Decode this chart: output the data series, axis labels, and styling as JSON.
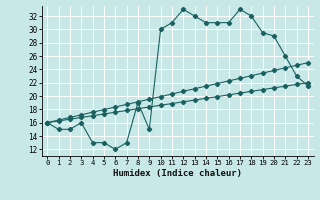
{
  "title": "",
  "xlabel": "Humidex (Indice chaleur)",
  "xlim": [
    -0.5,
    23.5
  ],
  "ylim": [
    11,
    33.5
  ],
  "yticks": [
    12,
    14,
    16,
    18,
    20,
    22,
    24,
    26,
    28,
    30,
    32
  ],
  "xticks": [
    0,
    1,
    2,
    3,
    4,
    5,
    6,
    7,
    8,
    9,
    10,
    11,
    12,
    13,
    14,
    15,
    16,
    17,
    18,
    19,
    20,
    21,
    22,
    23
  ],
  "background_color": "#c8e8e8",
  "line_color": "#1a6060",
  "grid_color": "#ffffff",
  "line1_x": [
    0,
    1,
    2,
    3,
    4,
    5,
    6,
    7,
    8,
    9,
    10,
    11,
    12,
    13,
    14,
    15,
    16,
    17,
    18,
    19,
    20,
    21,
    22,
    23
  ],
  "line1_y": [
    16,
    15,
    15,
    16,
    13,
    13,
    12,
    13,
    19,
    15,
    30,
    31,
    33,
    32,
    31,
    31,
    31,
    33,
    32,
    29.5,
    29,
    26,
    23,
    21.5
  ],
  "line2_x": [
    0,
    1,
    2,
    3,
    4,
    5,
    6,
    7,
    8,
    9,
    10,
    11,
    12,
    13,
    14,
    15,
    16,
    17,
    18,
    19,
    20,
    21,
    22,
    23
  ],
  "line2_y": [
    16,
    16.39,
    16.78,
    17.17,
    17.57,
    17.96,
    18.35,
    18.74,
    19.13,
    19.52,
    19.91,
    20.3,
    20.7,
    21.09,
    21.48,
    21.87,
    22.26,
    22.65,
    23.04,
    23.43,
    23.83,
    24.22,
    24.61,
    25
  ],
  "line3_x": [
    0,
    1,
    2,
    3,
    4,
    5,
    6,
    7,
    8,
    9,
    10,
    11,
    12,
    13,
    14,
    15,
    16,
    17,
    18,
    19,
    20,
    21,
    22,
    23
  ],
  "line3_y": [
    16,
    16.26,
    16.52,
    16.78,
    17.04,
    17.3,
    17.57,
    17.83,
    18.09,
    18.35,
    18.61,
    18.87,
    19.13,
    19.39,
    19.65,
    19.91,
    20.17,
    20.43,
    20.7,
    20.96,
    21.22,
    21.48,
    21.74,
    22
  ]
}
